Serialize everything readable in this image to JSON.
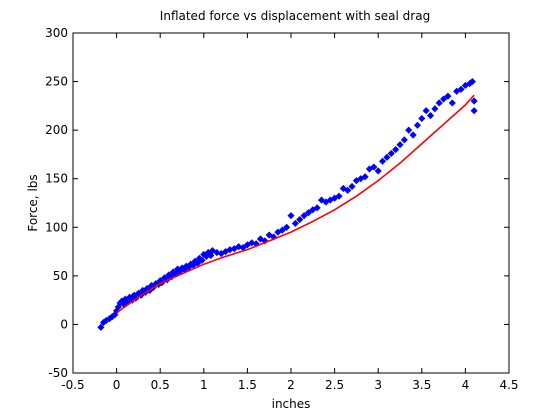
{
  "chart_data": {
    "type": "scatter",
    "title": "Inflated force vs displacement with seal drag",
    "xlabel": "inches",
    "ylabel": "Force, lbs",
    "xlim": [
      -0.5,
      4.5
    ],
    "ylim": [
      -50,
      300
    ],
    "xticks": [
      "-0.5",
      "0",
      "0.5",
      "1",
      "1.5",
      "2",
      "2.5",
      "3",
      "3.5",
      "4",
      "4.5"
    ],
    "yticks": [
      "-50",
      "0",
      "50",
      "100",
      "150",
      "200",
      "250",
      "300"
    ],
    "grid": false,
    "colors": {
      "scatter": "#0000ff",
      "fit": "#ff0000"
    },
    "scatter_marker": "diamond",
    "series": [
      {
        "kind": "scatter",
        "points": [
          [
            -0.18,
            -3
          ],
          [
            -0.15,
            2
          ],
          [
            -0.12,
            4
          ],
          [
            -0.08,
            6
          ],
          [
            -0.05,
            8
          ],
          [
            -0.02,
            10
          ],
          [
            0.0,
            14
          ],
          [
            0.02,
            18
          ],
          [
            0.04,
            22
          ],
          [
            0.06,
            24
          ],
          [
            0.08,
            21
          ],
          [
            0.1,
            26
          ],
          [
            0.12,
            23
          ],
          [
            0.15,
            28
          ],
          [
            0.18,
            25
          ],
          [
            0.2,
            30
          ],
          [
            0.22,
            27
          ],
          [
            0.25,
            32
          ],
          [
            0.28,
            30
          ],
          [
            0.3,
            35
          ],
          [
            0.33,
            33
          ],
          [
            0.35,
            37
          ],
          [
            0.38,
            35
          ],
          [
            0.4,
            40
          ],
          [
            0.42,
            38
          ],
          [
            0.45,
            42
          ],
          [
            0.48,
            41
          ],
          [
            0.5,
            45
          ],
          [
            0.52,
            43
          ],
          [
            0.55,
            48
          ],
          [
            0.58,
            46
          ],
          [
            0.6,
            51
          ],
          [
            0.63,
            49
          ],
          [
            0.65,
            54
          ],
          [
            0.68,
            52
          ],
          [
            0.7,
            57
          ],
          [
            0.73,
            55
          ],
          [
            0.75,
            58
          ],
          [
            0.78,
            56
          ],
          [
            0.8,
            60
          ],
          [
            0.83,
            59
          ],
          [
            0.85,
            62
          ],
          [
            0.88,
            61
          ],
          [
            0.9,
            65
          ],
          [
            0.93,
            63
          ],
          [
            0.95,
            68
          ],
          [
            0.98,
            66
          ],
          [
            1.0,
            72
          ],
          [
            1.03,
            70
          ],
          [
            1.05,
            74
          ],
          [
            1.08,
            71
          ],
          [
            1.1,
            76
          ],
          [
            1.15,
            74
          ],
          [
            1.2,
            73
          ],
          [
            1.25,
            75
          ],
          [
            1.3,
            77
          ],
          [
            1.35,
            78
          ],
          [
            1.4,
            80
          ],
          [
            1.45,
            79
          ],
          [
            1.5,
            82
          ],
          [
            1.55,
            84
          ],
          [
            1.6,
            83
          ],
          [
            1.65,
            88
          ],
          [
            1.7,
            86
          ],
          [
            1.75,
            92
          ],
          [
            1.8,
            90
          ],
          [
            1.85,
            95
          ],
          [
            1.9,
            97
          ],
          [
            1.95,
            100
          ],
          [
            2.0,
            112
          ],
          [
            2.05,
            104
          ],
          [
            2.1,
            108
          ],
          [
            2.15,
            112
          ],
          [
            2.2,
            115
          ],
          [
            2.25,
            118
          ],
          [
            2.3,
            120
          ],
          [
            2.35,
            128
          ],
          [
            2.4,
            126
          ],
          [
            2.45,
            128
          ],
          [
            2.5,
            130
          ],
          [
            2.55,
            132
          ],
          [
            2.6,
            140
          ],
          [
            2.65,
            138
          ],
          [
            2.7,
            142
          ],
          [
            2.75,
            148
          ],
          [
            2.8,
            150
          ],
          [
            2.85,
            152
          ],
          [
            2.9,
            160
          ],
          [
            2.95,
            162
          ],
          [
            3.0,
            158
          ],
          [
            3.05,
            168
          ],
          [
            3.1,
            172
          ],
          [
            3.15,
            176
          ],
          [
            3.2,
            180
          ],
          [
            3.25,
            185
          ],
          [
            3.3,
            190
          ],
          [
            3.35,
            200
          ],
          [
            3.4,
            195
          ],
          [
            3.45,
            205
          ],
          [
            3.5,
            212
          ],
          [
            3.55,
            220
          ],
          [
            3.6,
            215
          ],
          [
            3.65,
            222
          ],
          [
            3.7,
            228
          ],
          [
            3.75,
            232
          ],
          [
            3.8,
            235
          ],
          [
            3.85,
            228
          ],
          [
            3.9,
            240
          ],
          [
            3.95,
            242
          ],
          [
            4.0,
            246
          ],
          [
            4.05,
            248
          ],
          [
            4.08,
            250
          ],
          [
            4.1,
            230
          ],
          [
            4.1,
            220
          ]
        ]
      },
      {
        "kind": "line",
        "x": [
          0.0,
          0.25,
          0.5,
          0.75,
          1.0,
          1.25,
          1.5,
          1.75,
          2.0,
          2.25,
          2.5,
          2.75,
          3.0,
          3.25,
          3.5,
          3.75,
          4.0,
          4.1
        ],
        "y": [
          12,
          28,
          42,
          52,
          62,
          70,
          77,
          86,
          95,
          106,
          118,
          132,
          148,
          166,
          186,
          206,
          226,
          236
        ]
      }
    ]
  }
}
